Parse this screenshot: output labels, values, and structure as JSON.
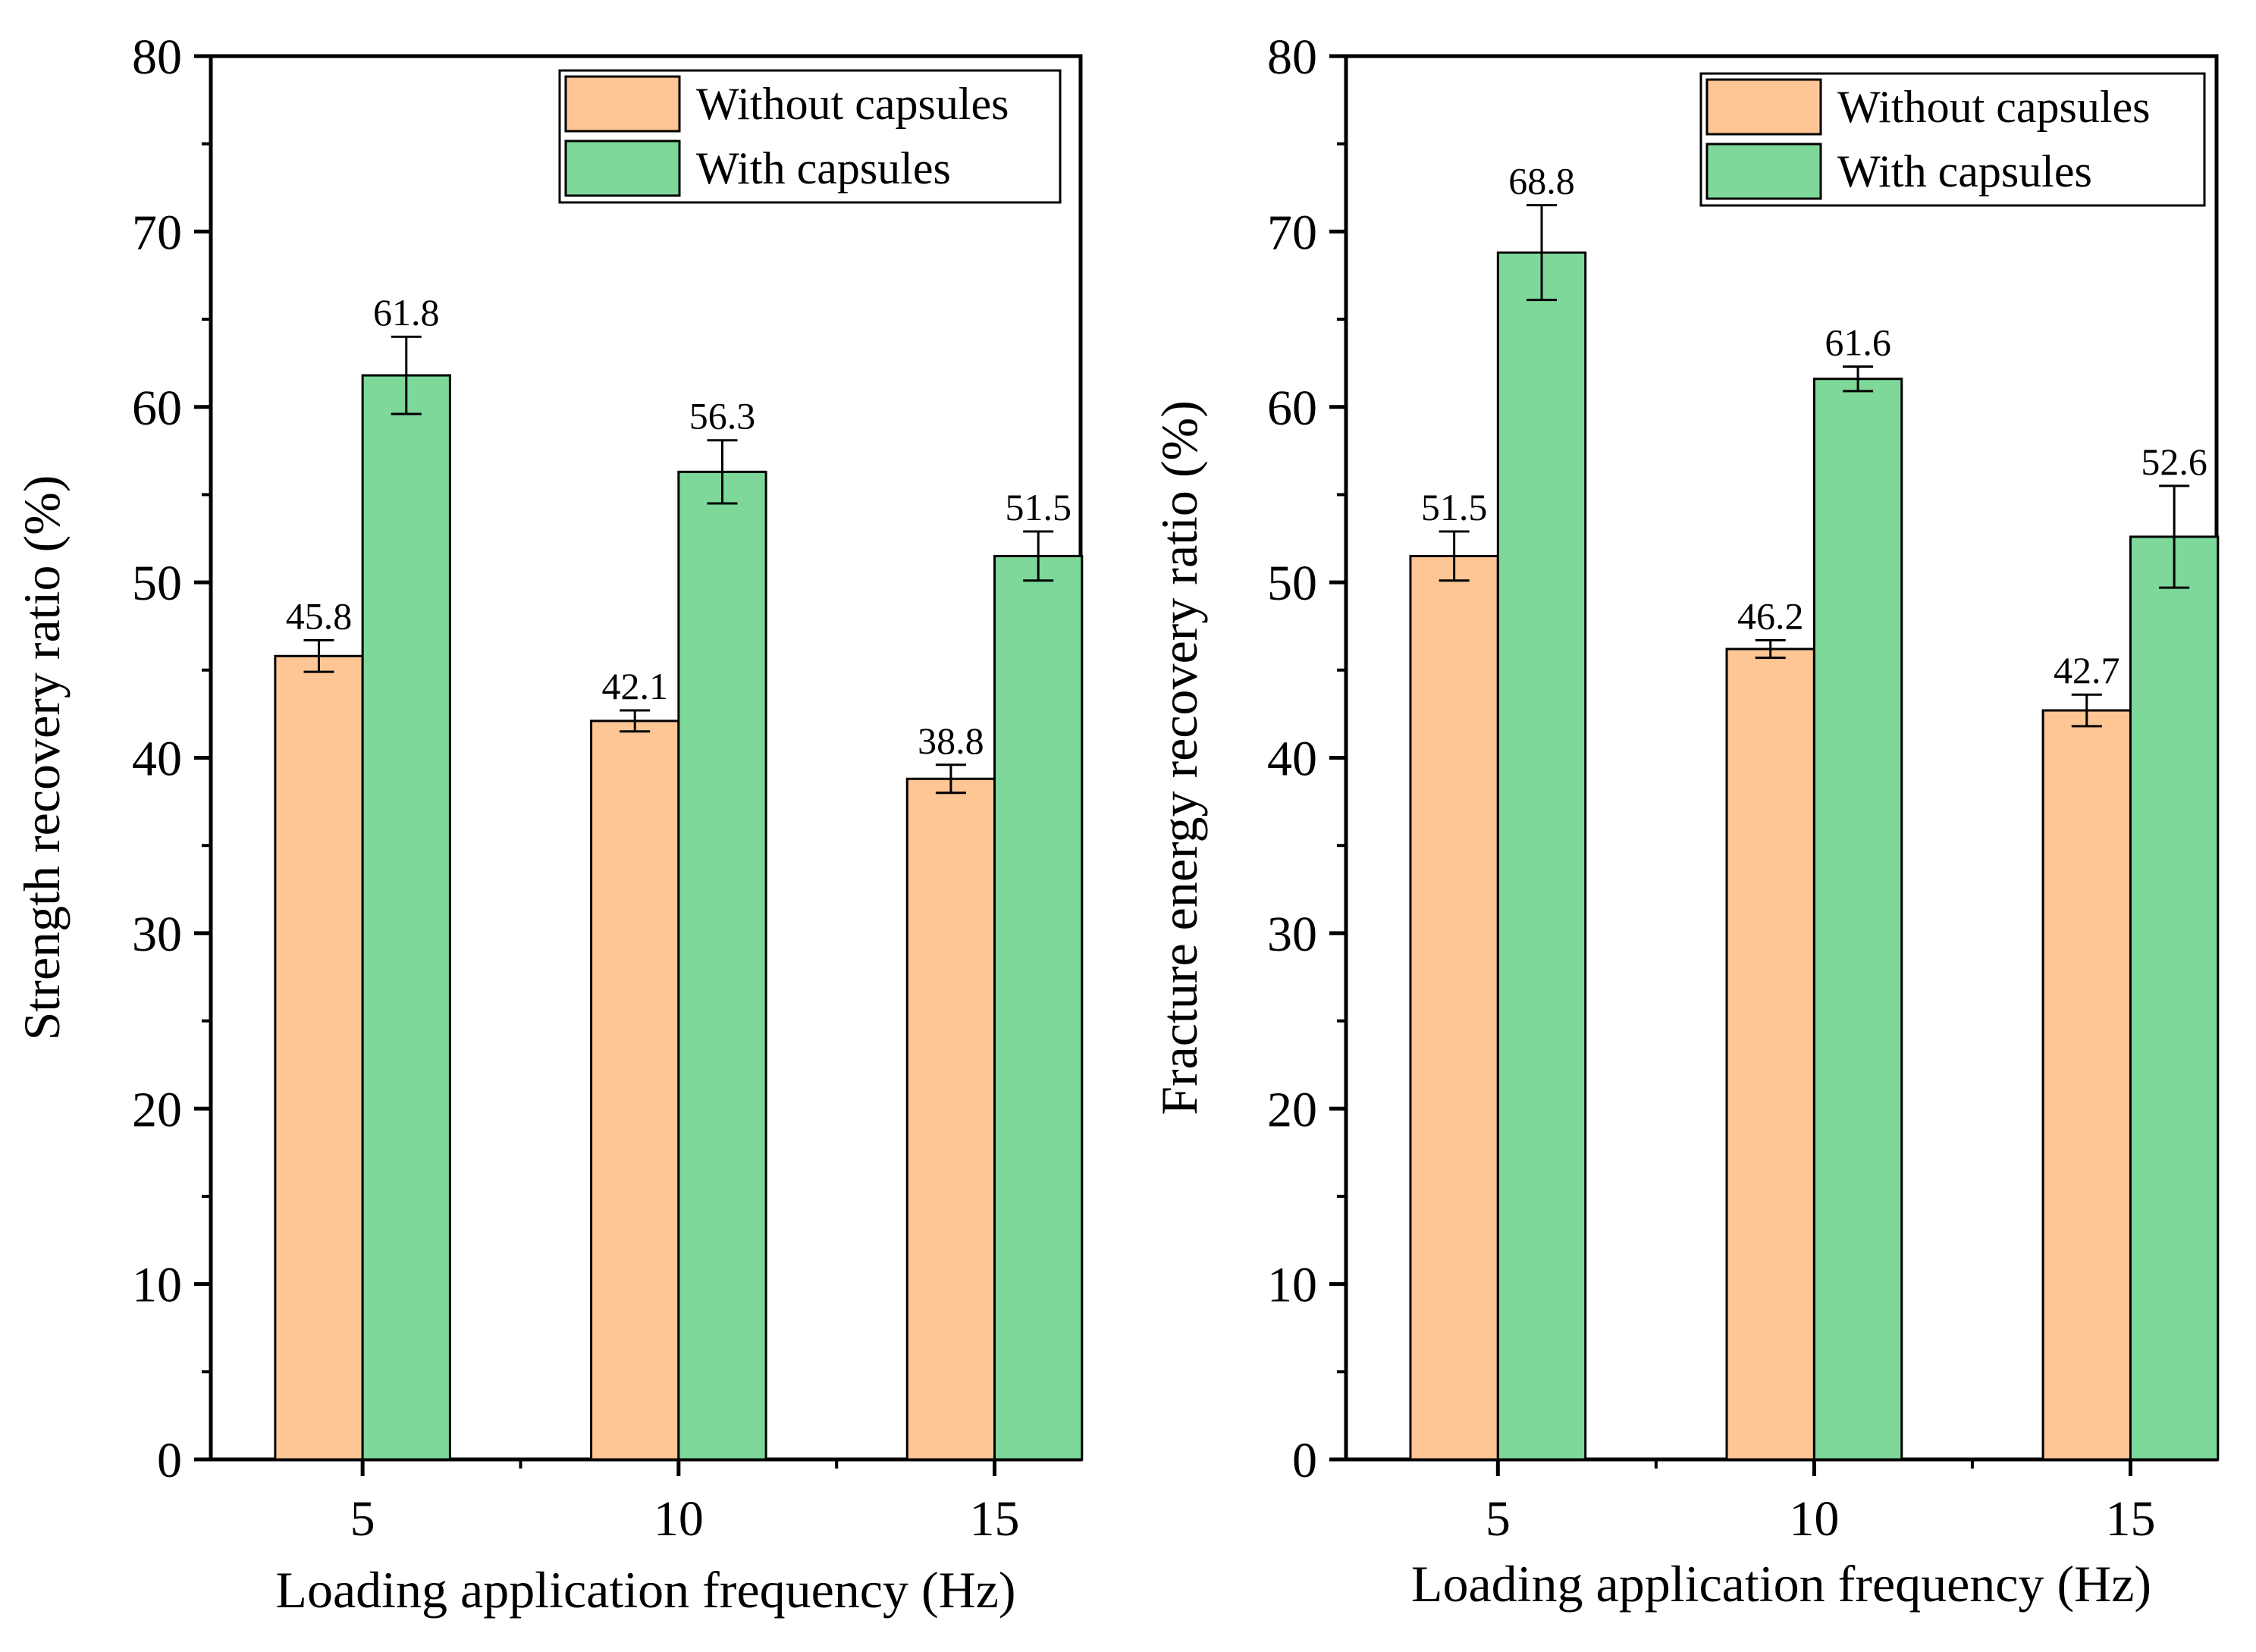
{
  "chart_data": [
    {
      "type": "bar",
      "categories": [
        "5",
        "10",
        "15"
      ],
      "series": [
        {
          "name": "Without capsules",
          "values": [
            45.8,
            42.1,
            38.8
          ],
          "errors": [
            0.9,
            0.6,
            0.8
          ],
          "color": "#fdc694"
        },
        {
          "name": "With capsules",
          "values": [
            61.8,
            56.3,
            51.5
          ],
          "errors": [
            2.2,
            1.8,
            1.4
          ],
          "color": "#7dd89a"
        }
      ],
      "data_labels": [
        [
          "45.8",
          "42.1",
          "38.8"
        ],
        [
          "61.8",
          "56.3",
          "51.5"
        ]
      ],
      "title": "",
      "xlabel": "Loading application frequency (Hz)",
      "ylabel": "Strength recovery ratio (%)",
      "ylim": [
        0,
        80
      ],
      "yticks": [
        "0",
        "10",
        "20",
        "30",
        "40",
        "50",
        "60",
        "70",
        "80"
      ],
      "grid": false,
      "legend_position": "top-right"
    },
    {
      "type": "bar",
      "categories": [
        "5",
        "10",
        "15"
      ],
      "series": [
        {
          "name": "Without capsules",
          "values": [
            51.5,
            46.2,
            42.7
          ],
          "errors": [
            1.4,
            0.5,
            0.9
          ],
          "color": "#fdc694"
        },
        {
          "name": "With capsules",
          "values": [
            68.8,
            61.6,
            52.6
          ],
          "errors": [
            2.7,
            0.7,
            2.9
          ],
          "color": "#7dd89a"
        }
      ],
      "data_labels": [
        [
          "51.5",
          "46.2",
          "42.7"
        ],
        [
          "68.8",
          "61.6",
          "52.6"
        ]
      ],
      "title": "",
      "xlabel": "Loading application frequency (Hz)",
      "ylabel": "Fracture energy recovery ratio (%)",
      "ylim": [
        0,
        80
      ],
      "yticks": [
        "0",
        "10",
        "20",
        "30",
        "40",
        "50",
        "60",
        "70",
        "80"
      ],
      "grid": false,
      "legend_position": "top-right"
    }
  ]
}
